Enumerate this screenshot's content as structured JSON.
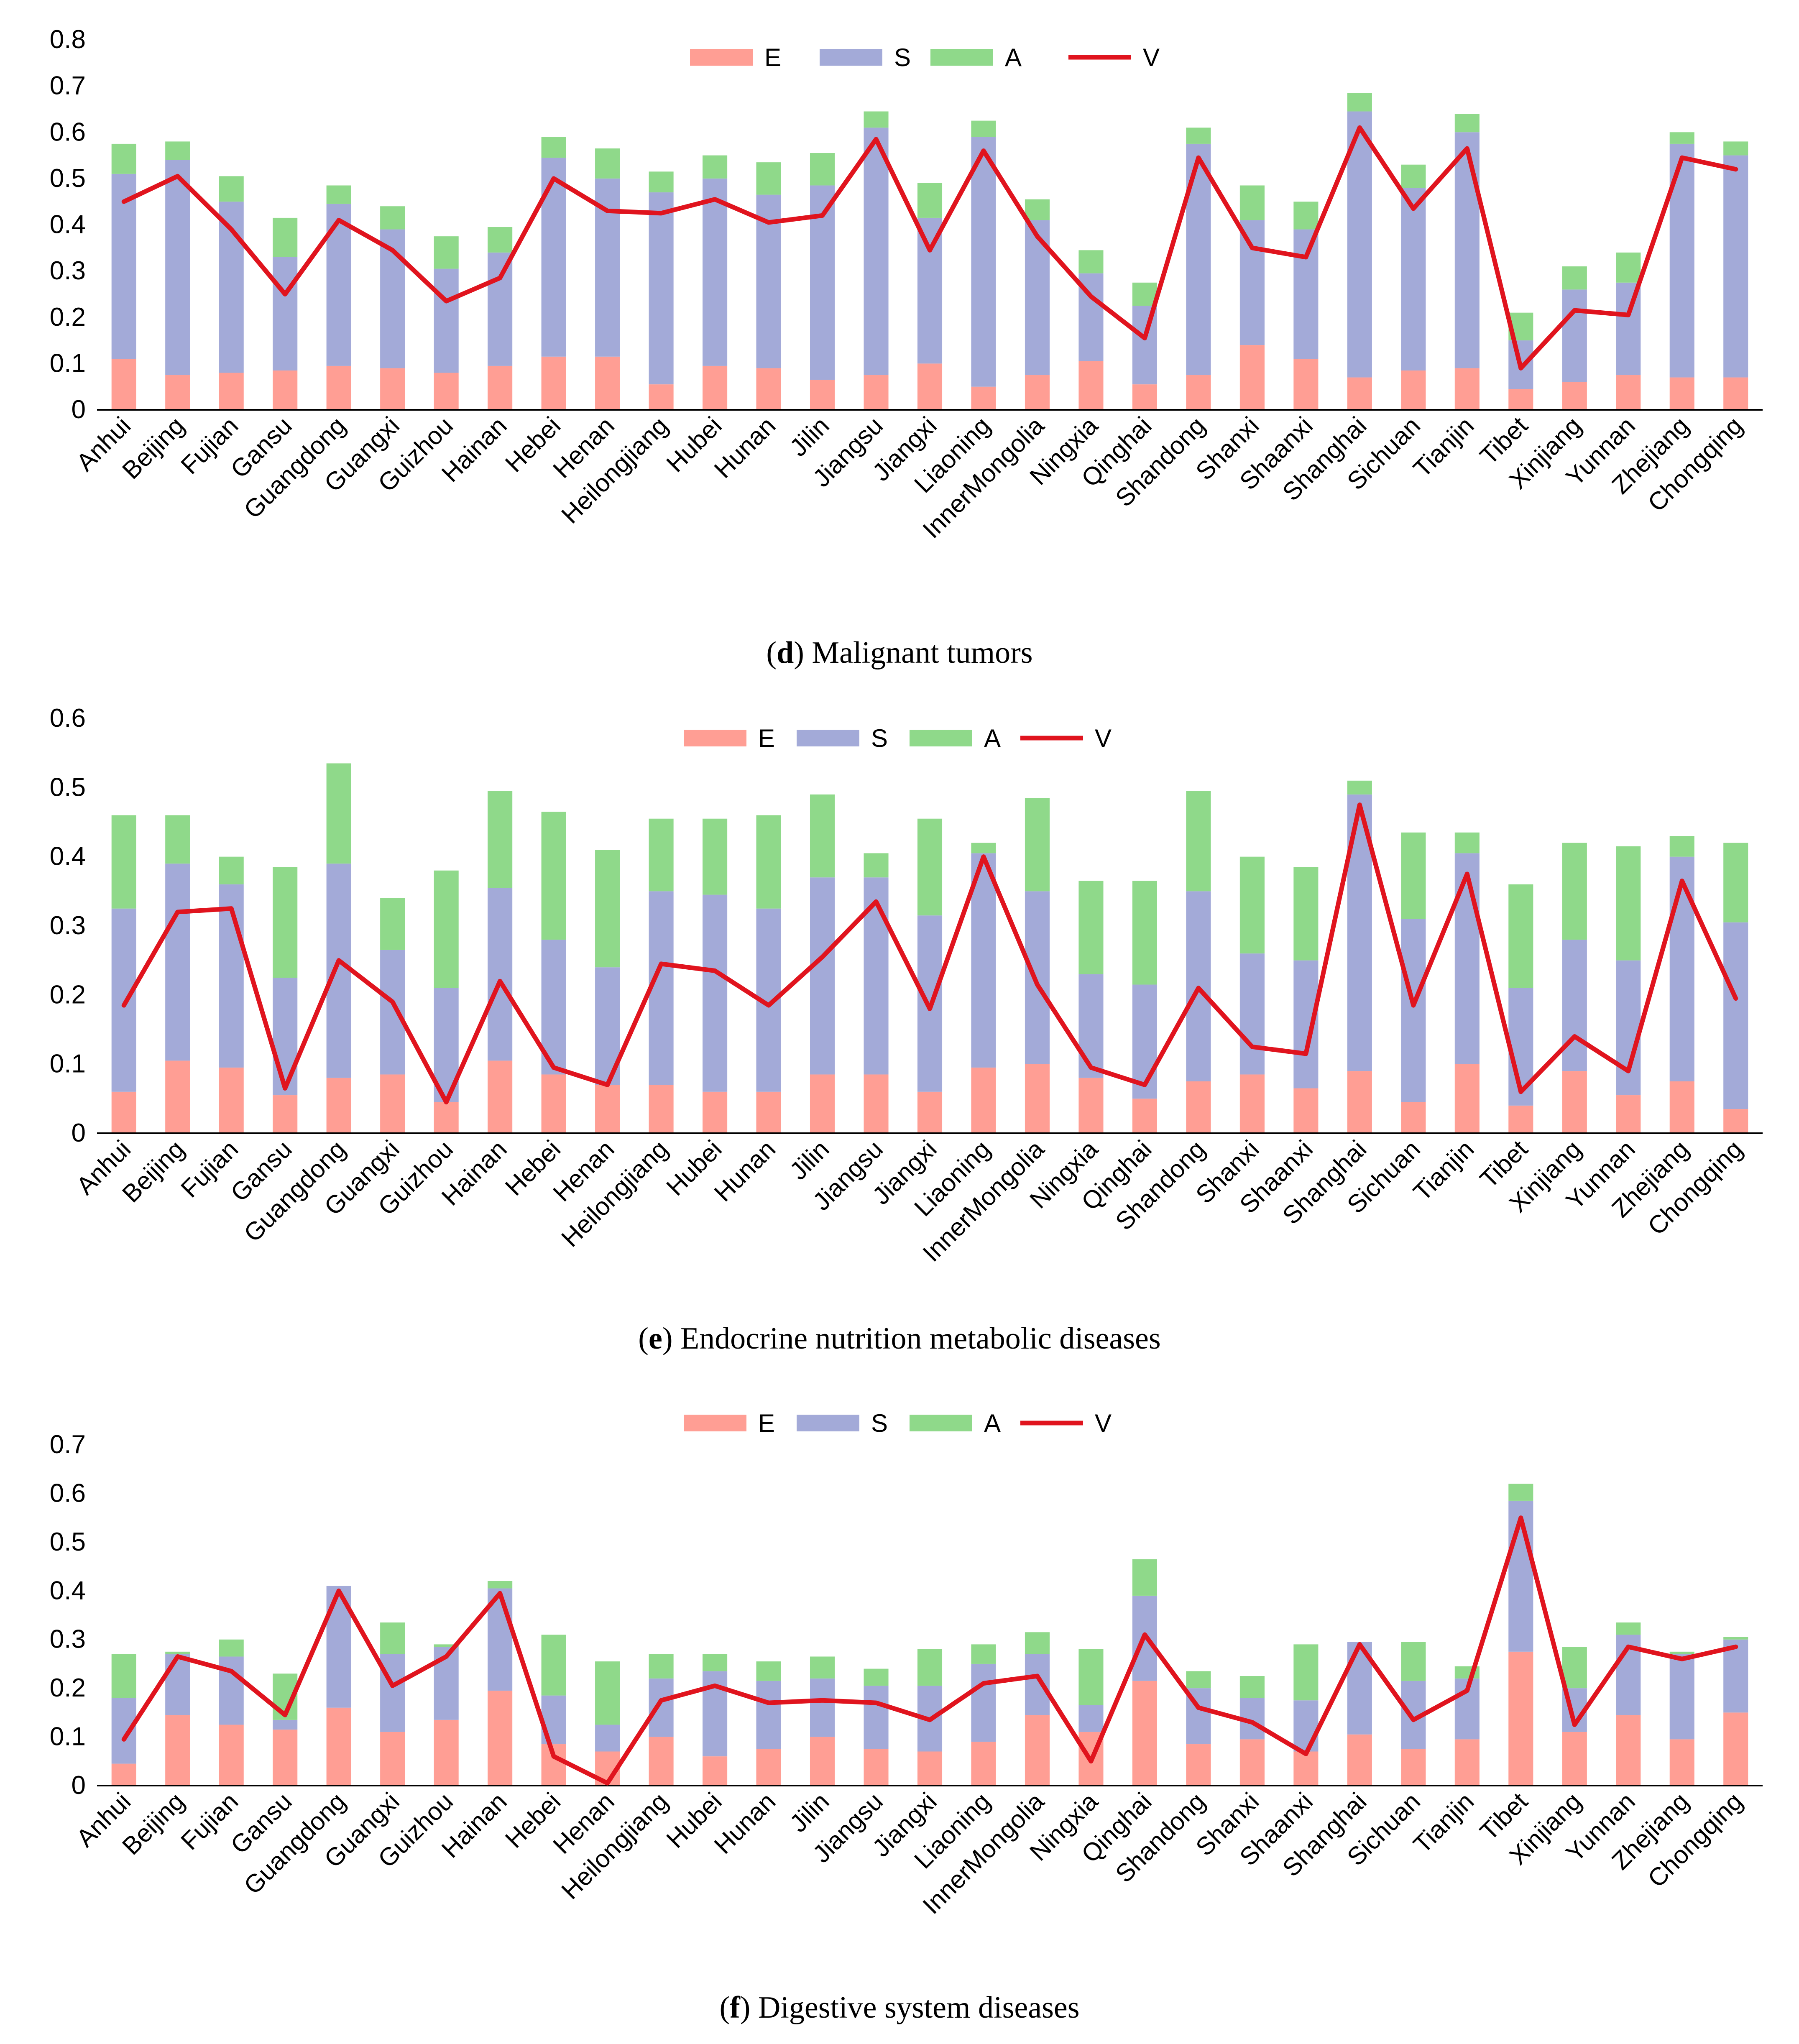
{
  "chart_data": [
    {
      "panel": "d",
      "caption_letter": "d",
      "caption_text": ") Malignant tumors",
      "type": "bar",
      "stacked": true,
      "categories": [
        "Anhui",
        "Beijing",
        "Fujian",
        "Gansu",
        "Guangdong",
        "Guangxi",
        "Guizhou",
        "Hainan",
        "Hebei",
        "Henan",
        "Heilongjiang",
        "Hubei",
        "Hunan",
        "Jilin",
        "Jiangsu",
        "Jiangxi",
        "Liaoning",
        "InnerMongolia",
        "Ningxia",
        "Qinghai",
        "Shandong",
        "Shanxi",
        "Shaanxi",
        "Shanghai",
        "Sichuan",
        "Tianjin",
        "Tibet",
        "Xinjiang",
        "Yunnan",
        "Zhejiang",
        "Chongqing"
      ],
      "ylim": [
        0,
        0.8
      ],
      "yticks": [
        "0",
        "0.1",
        "0.2",
        "0.3",
        "0.4",
        "0.5",
        "0.6",
        "0.7",
        "0.8"
      ],
      "legend_position": "top",
      "series": [
        {
          "name": "E",
          "kind": "bar",
          "color": "#ff9e94",
          "values": [
            0.11,
            0.075,
            0.08,
            0.085,
            0.095,
            0.09,
            0.08,
            0.095,
            0.115,
            0.115,
            0.055,
            0.095,
            0.09,
            0.065,
            0.075,
            0.1,
            0.05,
            0.075,
            0.105,
            0.055,
            0.075,
            0.14,
            0.11,
            0.07,
            0.085,
            0.09,
            0.045,
            0.06,
            0.075,
            0.07,
            0.07
          ]
        },
        {
          "name": "S",
          "kind": "bar",
          "color": "#a3aad8",
          "values": [
            0.4,
            0.465,
            0.37,
            0.245,
            0.35,
            0.3,
            0.225,
            0.245,
            0.43,
            0.385,
            0.415,
            0.405,
            0.375,
            0.42,
            0.535,
            0.315,
            0.54,
            0.335,
            0.19,
            0.17,
            0.5,
            0.27,
            0.28,
            0.575,
            0.395,
            0.51,
            0.105,
            0.2,
            0.2,
            0.505,
            0.48
          ]
        },
        {
          "name": "A",
          "kind": "bar",
          "color": "#8fd98a",
          "values": [
            0.065,
            0.04,
            0.055,
            0.085,
            0.04,
            0.05,
            0.07,
            0.055,
            0.045,
            0.065,
            0.045,
            0.05,
            0.07,
            0.07,
            0.035,
            0.075,
            0.035,
            0.045,
            0.05,
            0.05,
            0.035,
            0.075,
            0.06,
            0.04,
            0.05,
            0.04,
            0.06,
            0.05,
            0.065,
            0.025,
            0.03
          ]
        },
        {
          "name": "V",
          "kind": "line",
          "color": "#e0141e",
          "values": [
            0.45,
            0.505,
            0.39,
            0.25,
            0.41,
            0.345,
            0.235,
            0.285,
            0.5,
            0.43,
            0.425,
            0.455,
            0.405,
            0.42,
            0.585,
            0.345,
            0.56,
            0.375,
            0.245,
            0.155,
            0.545,
            0.35,
            0.33,
            0.61,
            0.435,
            0.565,
            0.09,
            0.215,
            0.205,
            0.545,
            0.52
          ]
        }
      ]
    },
    {
      "panel": "e",
      "caption_letter": "e",
      "caption_text": ") Endocrine nutrition metabolic diseases",
      "type": "bar",
      "stacked": true,
      "categories": [
        "Anhui",
        "Beijing",
        "Fujian",
        "Gansu",
        "Guangdong",
        "Guangxi",
        "Guizhou",
        "Hainan",
        "Hebei",
        "Henan",
        "Heilongjiang",
        "Hubei",
        "Hunan",
        "Jilin",
        "Jiangsu",
        "Jiangxi",
        "Liaoning",
        "InnerMongolia",
        "Ningxia",
        "Qinghai",
        "Shandong",
        "Shanxi",
        "Shaanxi",
        "Shanghai",
        "Sichuan",
        "Tianjin",
        "Tibet",
        "Xinjiang",
        "Yunnan",
        "Zhejiang",
        "Chongqing"
      ],
      "ylim": [
        0,
        0.6
      ],
      "yticks": [
        "0",
        "0.1",
        "0.2",
        "0.3",
        "0.4",
        "0.5",
        "0.6"
      ],
      "legend_position": "top",
      "series": [
        {
          "name": "E",
          "kind": "bar",
          "color": "#ff9e94",
          "values": [
            0.06,
            0.105,
            0.095,
            0.055,
            0.08,
            0.085,
            0.045,
            0.105,
            0.085,
            0.07,
            0.07,
            0.06,
            0.06,
            0.085,
            0.085,
            0.06,
            0.095,
            0.1,
            0.08,
            0.05,
            0.075,
            0.085,
            0.065,
            0.09,
            0.045,
            0.1,
            0.04,
            0.09,
            0.055,
            0.075,
            0.035
          ]
        },
        {
          "name": "S",
          "kind": "bar",
          "color": "#a3aad8",
          "values": [
            0.265,
            0.285,
            0.265,
            0.17,
            0.31,
            0.18,
            0.165,
            0.25,
            0.195,
            0.17,
            0.28,
            0.285,
            0.265,
            0.285,
            0.285,
            0.255,
            0.31,
            0.25,
            0.15,
            0.165,
            0.275,
            0.175,
            0.185,
            0.4,
            0.265,
            0.305,
            0.17,
            0.19,
            0.195,
            0.325,
            0.27
          ]
        },
        {
          "name": "A",
          "kind": "bar",
          "color": "#8fd98a",
          "values": [
            0.135,
            0.07,
            0.04,
            0.16,
            0.145,
            0.075,
            0.17,
            0.14,
            0.185,
            0.17,
            0.105,
            0.11,
            0.135,
            0.12,
            0.035,
            0.14,
            0.015,
            0.135,
            0.135,
            0.15,
            0.145,
            0.14,
            0.135,
            0.02,
            0.125,
            0.03,
            0.15,
            0.14,
            0.165,
            0.03,
            0.115
          ]
        },
        {
          "name": "V",
          "kind": "line",
          "color": "#e0141e",
          "values": [
            0.185,
            0.32,
            0.325,
            0.065,
            0.25,
            0.19,
            0.045,
            0.22,
            0.095,
            0.07,
            0.245,
            0.235,
            0.185,
            0.255,
            0.335,
            0.18,
            0.4,
            0.215,
            0.095,
            0.07,
            0.21,
            0.125,
            0.115,
            0.475,
            0.185,
            0.375,
            0.06,
            0.14,
            0.09,
            0.365,
            0.195
          ]
        }
      ]
    },
    {
      "panel": "f",
      "caption_letter": "f",
      "caption_text": ") Digestive system diseases",
      "type": "bar",
      "stacked": true,
      "categories": [
        "Anhui",
        "Beijing",
        "Fujian",
        "Gansu",
        "Guangdong",
        "Guangxi",
        "Guizhou",
        "Hainan",
        "Hebei",
        "Henan",
        "Heilongjiang",
        "Hubei",
        "Hunan",
        "Jilin",
        "Jiangsu",
        "Jiangxi",
        "Liaoning",
        "InnerMongolia",
        "Ningxia",
        "Qinghai",
        "Shandong",
        "Shanxi",
        "Shaanxi",
        "Shanghai",
        "Sichuan",
        "Tianjin",
        "Tibet",
        "Xinjiang",
        "Yunnan",
        "Zhejiang",
        "Chongqing"
      ],
      "ylim": [
        0,
        0.7
      ],
      "yticks": [
        "0",
        "0.1",
        "0.2",
        "0.3",
        "0.4",
        "0.5",
        "0.6",
        "0.7"
      ],
      "legend_position": "top",
      "series": [
        {
          "name": "E",
          "kind": "bar",
          "color": "#ff9e94",
          "values": [
            0.045,
            0.145,
            0.125,
            0.115,
            0.16,
            0.11,
            0.135,
            0.195,
            0.085,
            0.07,
            0.1,
            0.06,
            0.075,
            0.1,
            0.075,
            0.07,
            0.09,
            0.145,
            0.11,
            0.215,
            0.085,
            0.095,
            0.07,
            0.105,
            0.075,
            0.095,
            0.275,
            0.11,
            0.145,
            0.095,
            0.15
          ]
        },
        {
          "name": "S",
          "kind": "bar",
          "color": "#a3aad8",
          "values": [
            0.135,
            0.125,
            0.14,
            0.02,
            0.25,
            0.16,
            0.15,
            0.21,
            0.1,
            0.055,
            0.12,
            0.175,
            0.14,
            0.12,
            0.13,
            0.135,
            0.16,
            0.125,
            0.055,
            0.175,
            0.115,
            0.085,
            0.105,
            0.19,
            0.14,
            0.125,
            0.31,
            0.09,
            0.165,
            0.175,
            0.15
          ]
        },
        {
          "name": "A",
          "kind": "bar",
          "color": "#8fd98a",
          "values": [
            0.09,
            0.005,
            0.035,
            0.095,
            0.0,
            0.065,
            0.005,
            0.015,
            0.125,
            0.13,
            0.05,
            0.035,
            0.04,
            0.045,
            0.035,
            0.075,
            0.04,
            0.045,
            0.115,
            0.075,
            0.035,
            0.045,
            0.115,
            0.0,
            0.08,
            0.025,
            0.035,
            0.085,
            0.025,
            0.005,
            0.005
          ]
        },
        {
          "name": "V",
          "kind": "line",
          "color": "#e0141e",
          "values": [
            0.095,
            0.265,
            0.235,
            0.145,
            0.4,
            0.205,
            0.265,
            0.395,
            0.06,
            0.005,
            0.175,
            0.205,
            0.17,
            0.175,
            0.17,
            0.135,
            0.21,
            0.225,
            0.05,
            0.31,
            0.16,
            0.13,
            0.065,
            0.29,
            0.135,
            0.195,
            0.55,
            0.125,
            0.285,
            0.26,
            0.285
          ]
        }
      ]
    }
  ]
}
